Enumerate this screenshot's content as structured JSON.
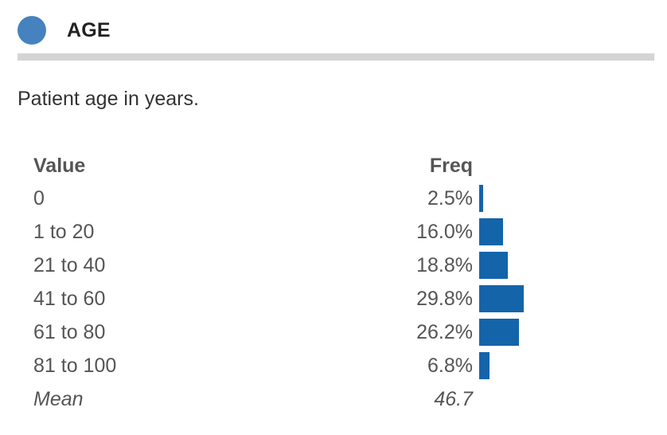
{
  "header": {
    "title": "AGE",
    "dot_color": "#4682c0"
  },
  "description": "Patient age in years.",
  "table": {
    "value_header": "Value",
    "freq_header": "Freq",
    "mean_label": "Mean",
    "mean_value": "46.7",
    "bar_color": "#1464aa"
  },
  "chart_data": {
    "type": "bar",
    "orientation": "horizontal",
    "title": "AGE",
    "xlabel": "Freq",
    "ylabel": "Value",
    "categories": [
      "0",
      "1 to 20",
      "21 to 40",
      "41 to 60",
      "61 to 80",
      "81 to 100"
    ],
    "values": [
      2.5,
      16.0,
      18.8,
      29.8,
      26.2,
      6.8
    ],
    "value_labels": [
      "2.5%",
      "16.0%",
      "18.8%",
      "29.8%",
      "26.2%",
      "6.8%"
    ],
    "units": "%",
    "mean": 46.7,
    "grid": false
  }
}
